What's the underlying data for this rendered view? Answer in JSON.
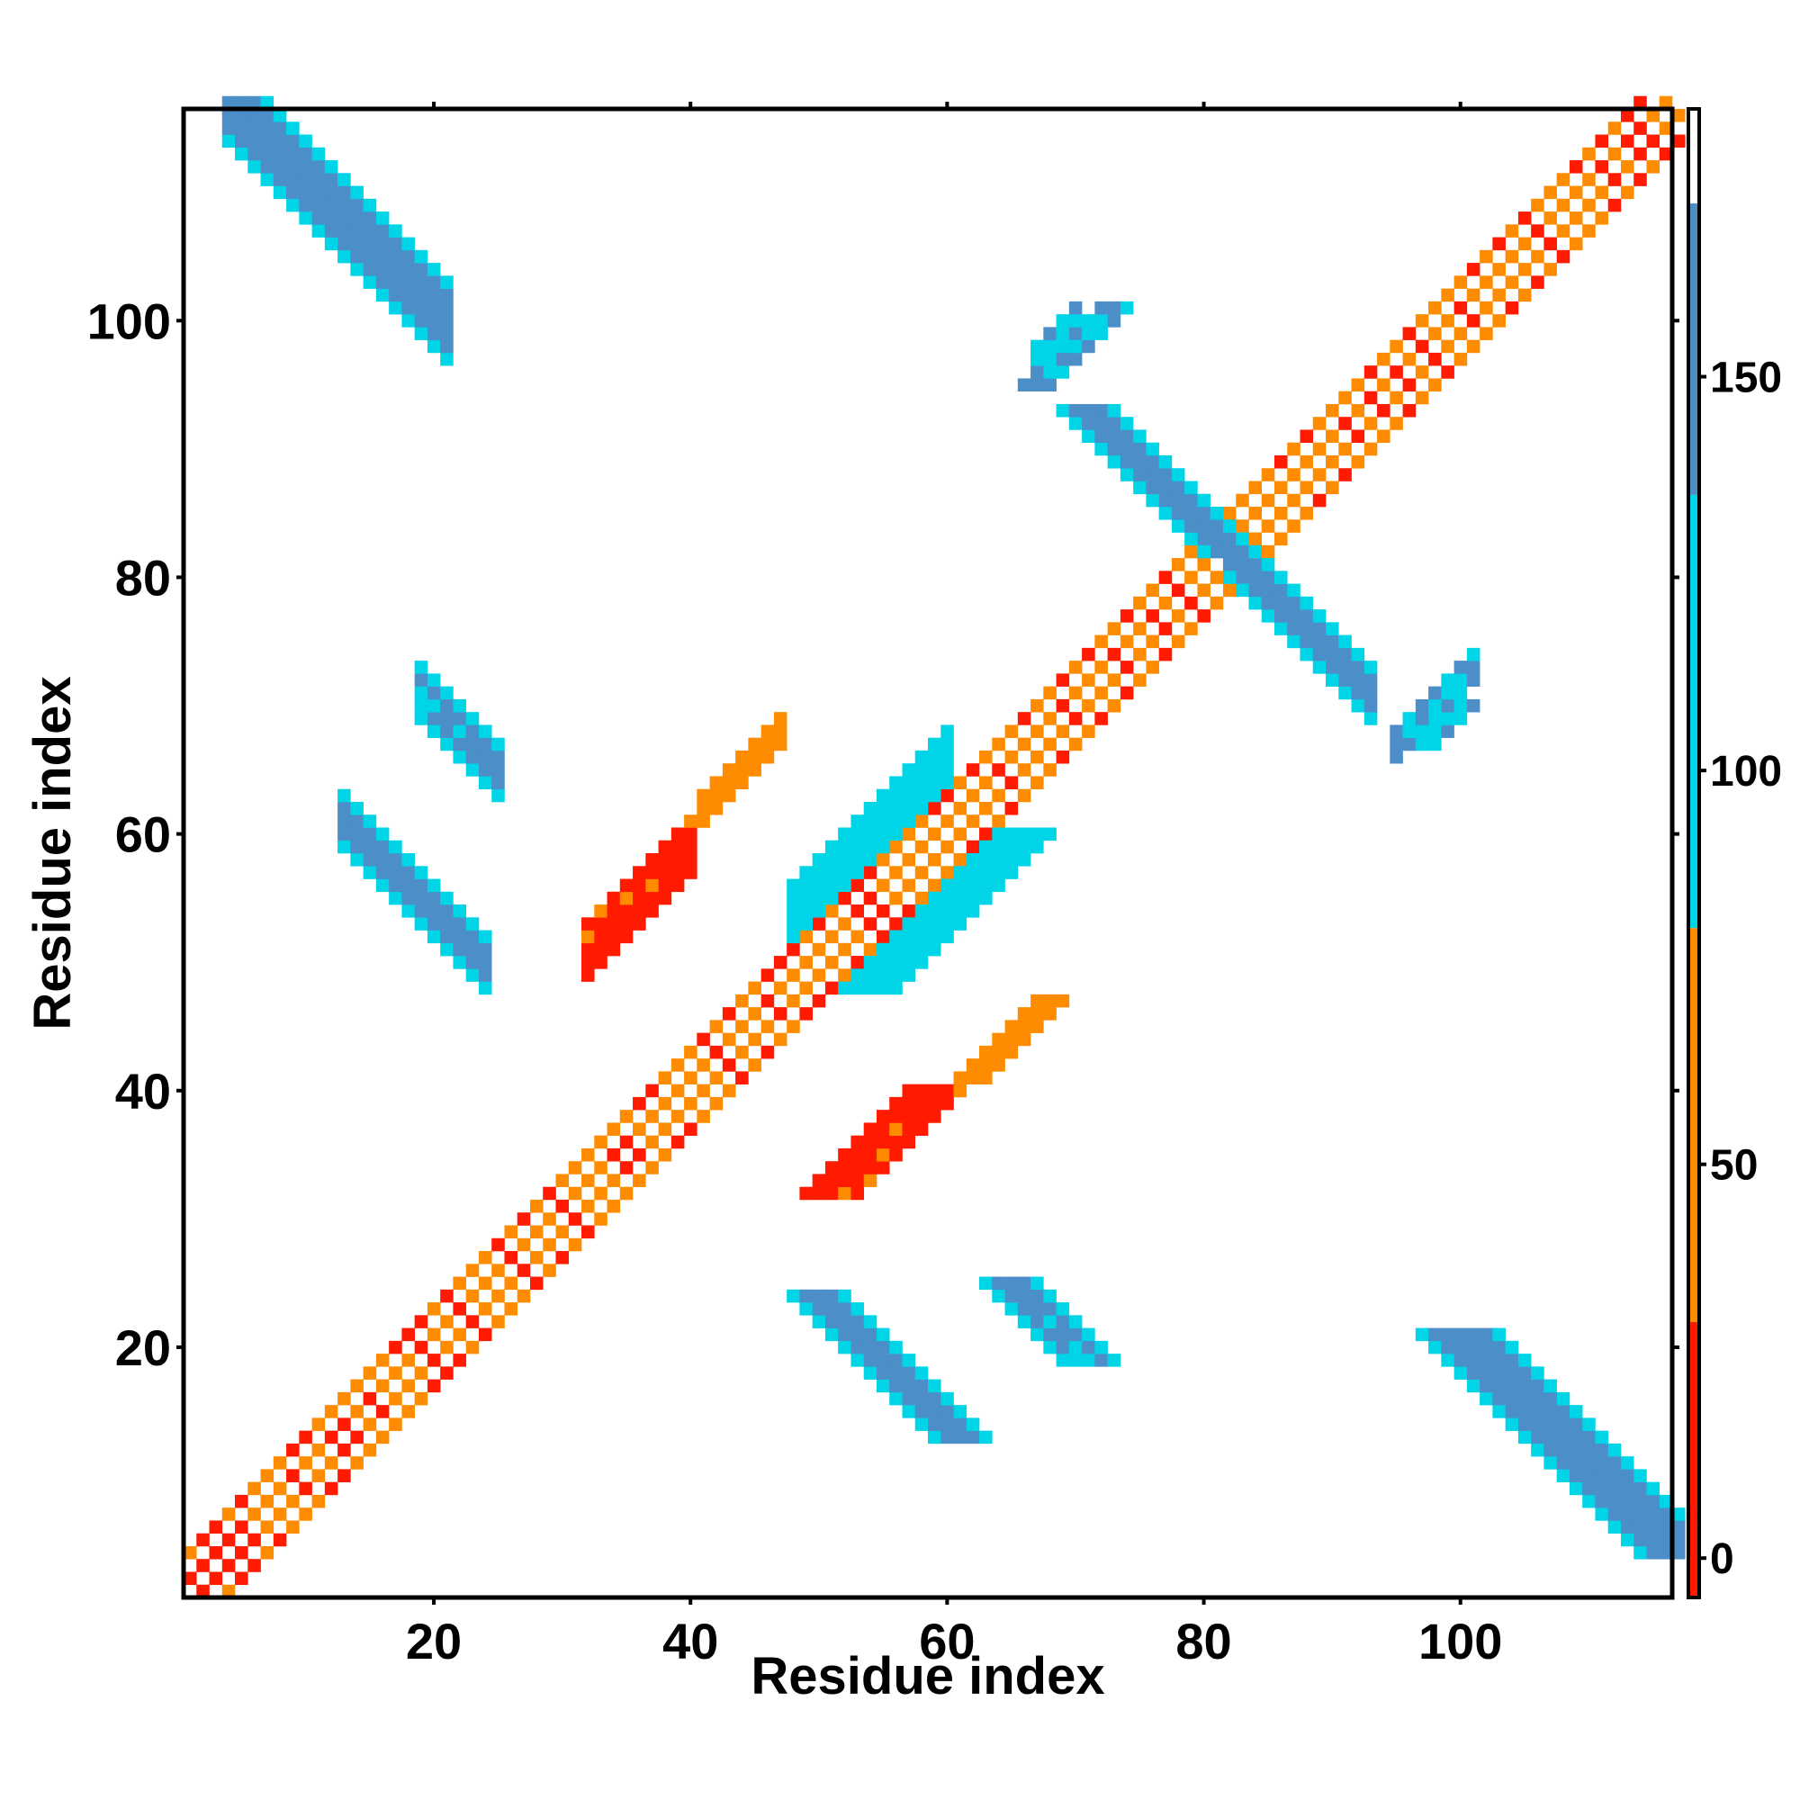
{
  "chart_data": {
    "type": "heatmap",
    "title": "",
    "xlabel": "Residue index",
    "ylabel": "Residue index",
    "xlim": [
      0.5,
      116.5
    ],
    "ylim": [
      0.5,
      116.5
    ],
    "x_ticks": [
      20,
      40,
      60,
      80,
      100
    ],
    "y_ticks": [
      20,
      40,
      60,
      80,
      100
    ],
    "grid": false,
    "colorbar": {
      "range": [
        -5,
        184
      ],
      "ticks": [
        0,
        50,
        100,
        150
      ],
      "bands": [
        {
          "from": -5,
          "to": 30,
          "color": "#ff1a00"
        },
        {
          "from": 30,
          "to": 80,
          "color": "#ff8c00"
        },
        {
          "from": 80,
          "to": 135,
          "color": "#00d5e8"
        },
        {
          "from": 135,
          "to": 172,
          "color": "#4c8ec8"
        },
        {
          "from": 172,
          "to": 184,
          "color": "#ffffff"
        }
      ]
    },
    "pattern": "symmetric contact map of residue pairs; diagonal band alternates colored/empty cells",
    "regions": [
      {
        "name": "diagonal-band",
        "kind": "band",
        "from": [
          1,
          1
        ],
        "to": [
          116,
          116
        ],
        "halfwidth": 3,
        "value": 40,
        "variation": "checker"
      },
      {
        "name": "sheet-4-21",
        "kind": "antiparallel",
        "i0": 4,
        "i1": 21,
        "sum": 121,
        "width": 3,
        "value": 150
      },
      {
        "name": "sheet-13-24",
        "kind": "antiparallel",
        "i0": 13,
        "i1": 24,
        "sum": 74,
        "width": 2,
        "value": 145
      },
      {
        "name": "sheet-19-25",
        "kind": "antiparallel",
        "i0": 19,
        "i1": 25,
        "sum": 90,
        "width": 2,
        "value": 140
      },
      {
        "name": "sheet-82-93",
        "kind": "antiparallel",
        "i0": 82,
        "i1": 93,
        "sum": 164,
        "width": 2,
        "value": 150
      },
      {
        "name": "patch-32-55",
        "kind": "parallel",
        "i0": 32,
        "i1": 40,
        "diff": 19,
        "width": 2,
        "value": 15
      },
      {
        "name": "patch-41-63",
        "kind": "parallel",
        "i0": 41,
        "i1": 47,
        "diff": 21,
        "width": 1,
        "value": 45
      },
      {
        "name": "patch-48-53",
        "kind": "parallel",
        "i0": 48,
        "i1": 60,
        "diff": 6,
        "width": 2,
        "value": 110
      },
      {
        "name": "patch-67-97",
        "kind": "parallel",
        "i0": 67,
        "i1": 70,
        "diff": 30,
        "width": 1,
        "value": 130
      },
      {
        "name": "patch-92-69",
        "kind": "parallel",
        "i0": 95,
        "i1": 101,
        "diff": -28,
        "width": 1,
        "value": 140
      }
    ]
  }
}
